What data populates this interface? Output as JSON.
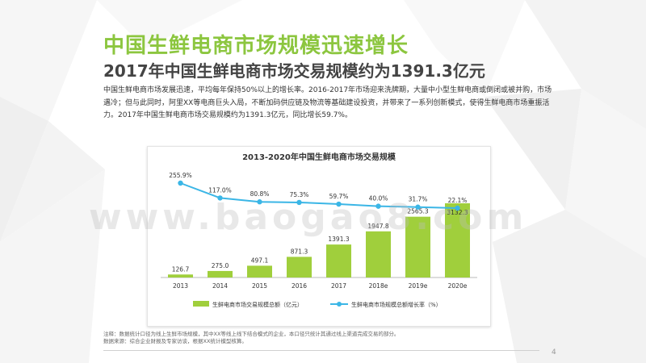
{
  "slide": {
    "title": "中国生鲜电商市场规模迅速增长",
    "subtitle": "2017年中国生鲜电商市场交易规模约为1391.3亿元",
    "paragraph": "中国生鲜电商市场发展迅速，平均每年保持50%以上的增长率。2016-2017年市场迎来洗牌期，大量中小型生鲜电商或倒闭或被并购，市场遇冷；但与此同时，阿里XX等电商巨头入局，不断加码供应链及物流等基础建设投资，并带来了一系列创新模式，使得生鲜电商市场重振活力。2017年中国生鲜电商市场交易规模约为1391.3亿元，同比增长59.7%。",
    "note_line1": "注释：数据统计口径为线上生鲜市场规模，其中XX等线上线下结合模式的企业，本口径只统计其通过线上渠道完成交易的部分。",
    "note_line2": "数据来源：综合企业财报及专家访谈，根据XX统计模型核算。",
    "page_number": "4",
    "watermark": "www.baogao8.com"
  },
  "chart_data": {
    "type": "bar+line",
    "title": "2013-2020年中国生鲜电商市场交易规模",
    "categories": [
      "2013",
      "2014",
      "2015",
      "2016",
      "2017",
      "2018e",
      "2019e",
      "2020e"
    ],
    "series": [
      {
        "name": "生鲜电商市场交易规模总额（亿元）",
        "type": "bar",
        "color": "#a0cf3c",
        "values": [
          126.7,
          275.0,
          497.1,
          871.3,
          1391.3,
          1947.8,
          2565.3,
          3132.3
        ],
        "labels": [
          "126.7",
          "275.0",
          "497.1",
          "871.3",
          "1391.3",
          "1947.8",
          "2565.3",
          "3132.3"
        ]
      },
      {
        "name": "生鲜电商市场规模总额增长率（%）",
        "type": "line",
        "color": "#3bb6e6",
        "values": [
          255.9,
          117.0,
          80.8,
          75.3,
          59.7,
          40.0,
          31.7,
          22.1
        ],
        "labels": [
          "255.9%",
          "117.0%",
          "80.8%",
          "75.3%",
          "59.7%",
          "40.0%",
          "31.7%",
          "22.1%"
        ]
      }
    ]
  }
}
